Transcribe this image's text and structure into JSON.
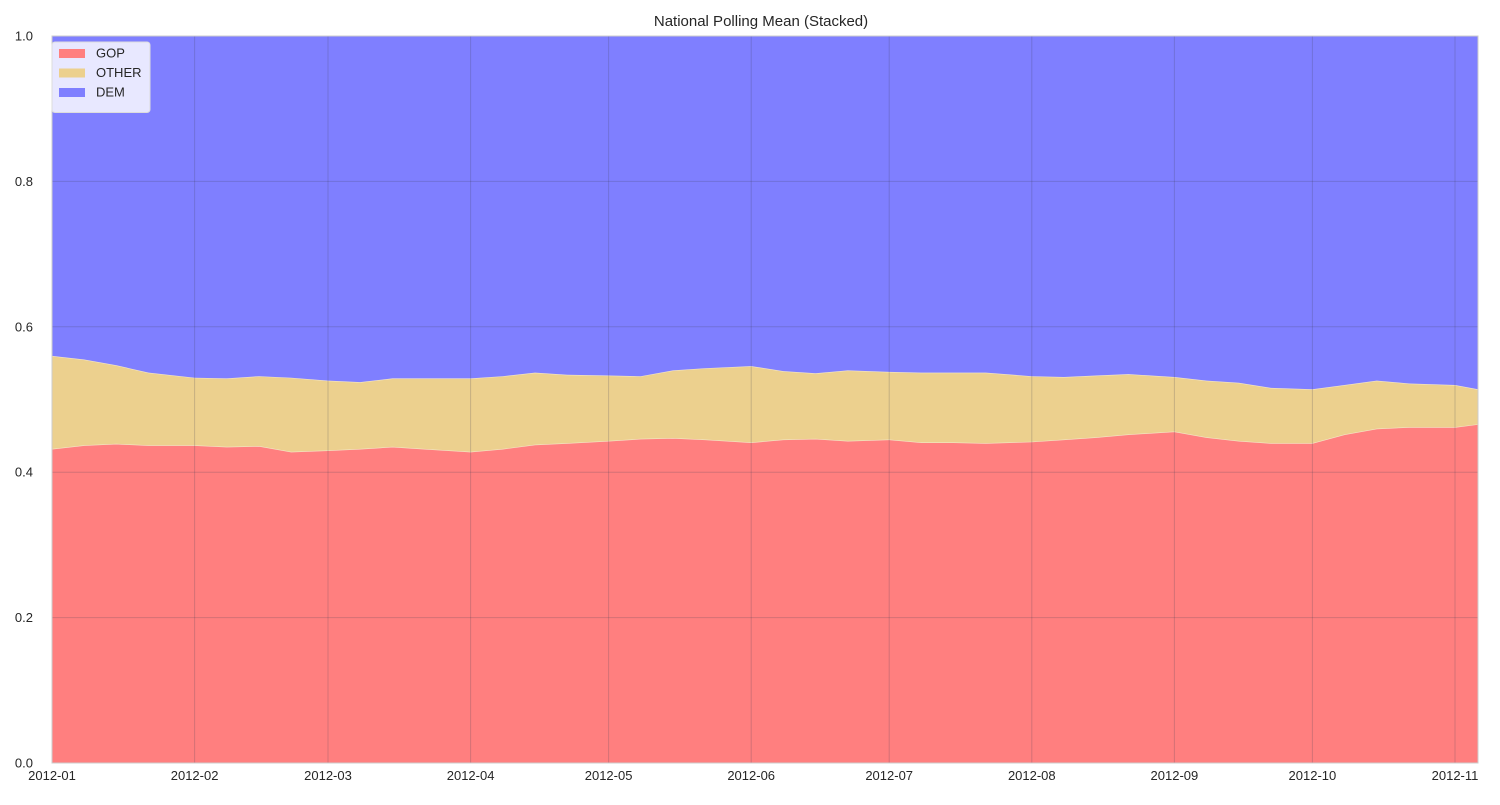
{
  "chart_data": {
    "type": "area",
    "stacked": true,
    "title": "National Polling Mean (Stacked)",
    "xlabel": "",
    "ylabel": "",
    "x_axis": {
      "type": "date",
      "range": [
        "2012-01-01",
        "2012-11-06"
      ]
    },
    "ylim": [
      0,
      1.0
    ],
    "grid": true,
    "legend_position": "top-left",
    "x_ticks": [
      {
        "date": "2012-01-01",
        "label": "2012-01"
      },
      {
        "date": "2012-02-01",
        "label": "2012-02"
      },
      {
        "date": "2012-03-01",
        "label": "2012-03"
      },
      {
        "date": "2012-04-01",
        "label": "2012-04"
      },
      {
        "date": "2012-05-01",
        "label": "2012-05"
      },
      {
        "date": "2012-06-01",
        "label": "2012-06"
      },
      {
        "date": "2012-07-01",
        "label": "2012-07"
      },
      {
        "date": "2012-08-01",
        "label": "2012-08"
      },
      {
        "date": "2012-09-01",
        "label": "2012-09"
      },
      {
        "date": "2012-10-01",
        "label": "2012-10"
      },
      {
        "date": "2012-11-01",
        "label": "2012-11"
      }
    ],
    "y_ticks": [
      {
        "value": 0.0,
        "label": "0.0"
      },
      {
        "value": 0.2,
        "label": "0.2"
      },
      {
        "value": 0.4,
        "label": "0.4"
      },
      {
        "value": 0.6,
        "label": "0.6"
      },
      {
        "value": 0.8,
        "label": "0.8"
      },
      {
        "value": 1.0,
        "label": "1.0"
      }
    ],
    "x": [
      "2012-01-01",
      "2012-01-08",
      "2012-01-15",
      "2012-01-22",
      "2012-02-01",
      "2012-02-08",
      "2012-02-15",
      "2012-02-22",
      "2012-03-01",
      "2012-03-08",
      "2012-03-15",
      "2012-03-22",
      "2012-04-01",
      "2012-04-08",
      "2012-04-15",
      "2012-04-22",
      "2012-05-01",
      "2012-05-08",
      "2012-05-15",
      "2012-05-22",
      "2012-06-01",
      "2012-06-08",
      "2012-06-15",
      "2012-06-22",
      "2012-07-01",
      "2012-07-08",
      "2012-07-15",
      "2012-07-22",
      "2012-08-01",
      "2012-08-08",
      "2012-08-15",
      "2012-08-22",
      "2012-09-01",
      "2012-09-08",
      "2012-09-15",
      "2012-09-22",
      "2012-10-01",
      "2012-10-08",
      "2012-10-15",
      "2012-10-22",
      "2012-11-01",
      "2012-11-06"
    ],
    "series": [
      {
        "name": "GOP",
        "color": "#ff7f7f",
        "values": [
          0.432,
          0.437,
          0.439,
          0.437,
          0.437,
          0.435,
          0.436,
          0.428,
          0.43,
          0.432,
          0.435,
          0.432,
          0.428,
          0.432,
          0.438,
          0.44,
          0.443,
          0.446,
          0.447,
          0.445,
          0.441,
          0.445,
          0.446,
          0.443,
          0.445,
          0.441,
          0.441,
          0.44,
          0.442,
          0.445,
          0.448,
          0.452,
          0.456,
          0.448,
          0.443,
          0.44,
          0.44,
          0.452,
          0.46,
          0.462,
          0.462,
          0.466
        ]
      },
      {
        "name": "OTHER",
        "color": "#ecd08e",
        "values": [
          0.128,
          0.118,
          0.108,
          0.1,
          0.093,
          0.094,
          0.096,
          0.102,
          0.096,
          0.092,
          0.094,
          0.097,
          0.101,
          0.1,
          0.099,
          0.094,
          0.09,
          0.086,
          0.093,
          0.098,
          0.105,
          0.094,
          0.09,
          0.097,
          0.093,
          0.096,
          0.096,
          0.097,
          0.09,
          0.086,
          0.085,
          0.083,
          0.075,
          0.078,
          0.08,
          0.076,
          0.074,
          0.068,
          0.066,
          0.06,
          0.058,
          0.048
        ]
      },
      {
        "name": "DEM",
        "color": "#7f7fff",
        "values": [
          0.44,
          0.445,
          0.453,
          0.463,
          0.47,
          0.471,
          0.468,
          0.47,
          0.474,
          0.476,
          0.471,
          0.471,
          0.471,
          0.468,
          0.463,
          0.466,
          0.467,
          0.468,
          0.46,
          0.457,
          0.454,
          0.461,
          0.464,
          0.46,
          0.462,
          0.463,
          0.463,
          0.463,
          0.468,
          0.469,
          0.467,
          0.465,
          0.469,
          0.474,
          0.477,
          0.484,
          0.486,
          0.48,
          0.474,
          0.478,
          0.48,
          0.486
        ]
      }
    ]
  }
}
